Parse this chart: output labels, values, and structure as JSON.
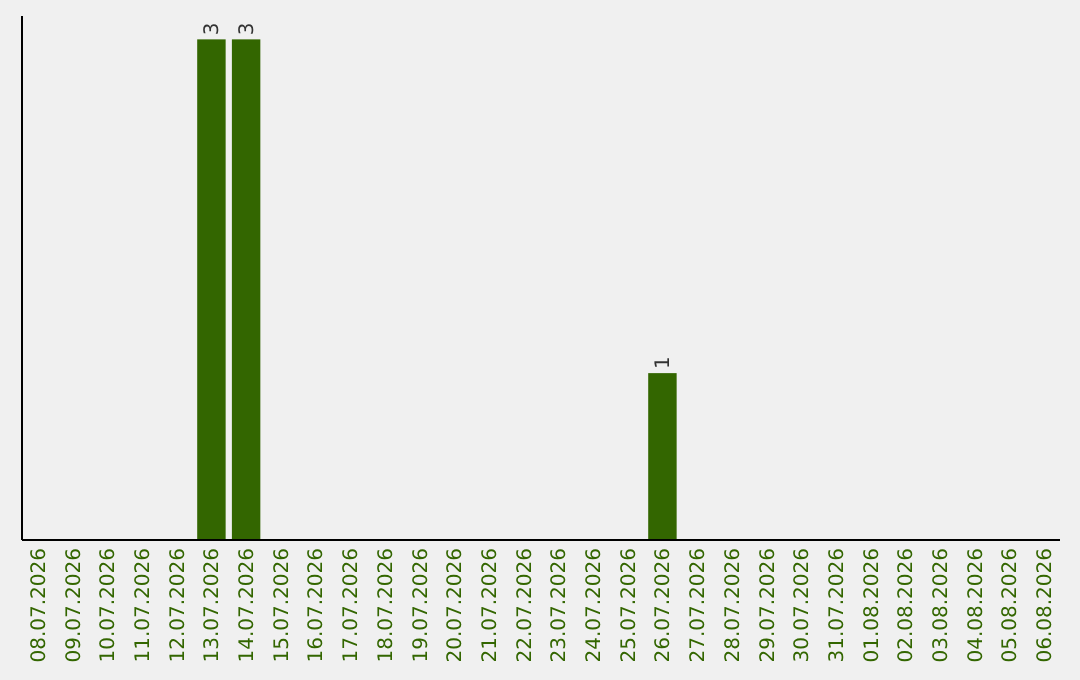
{
  "chart_data": {
    "type": "bar",
    "categories": [
      "08.07.2026",
      "09.07.2026",
      "10.07.2026",
      "11.07.2026",
      "12.07.2026",
      "13.07.2026",
      "14.07.2026",
      "15.07.2026",
      "16.07.2026",
      "17.07.2026",
      "18.07.2026",
      "19.07.2026",
      "20.07.2026",
      "21.07.2026",
      "22.07.2026",
      "23.07.2026",
      "24.07.2026",
      "25.07.2026",
      "26.07.2026",
      "27.07.2026",
      "28.07.2026",
      "29.07.2026",
      "30.07.2026",
      "31.07.2026",
      "01.08.2026",
      "02.08.2026",
      "03.08.2026",
      "04.08.2026",
      "05.08.2026",
      "06.08.2026"
    ],
    "values": [
      0,
      0,
      0,
      0,
      0,
      3,
      3,
      0,
      0,
      0,
      0,
      0,
      0,
      0,
      0,
      0,
      0,
      0,
      1,
      0,
      0,
      0,
      0,
      0,
      0,
      0,
      0,
      0,
      0,
      0
    ],
    "value_labels": [
      null,
      null,
      null,
      null,
      null,
      "3",
      "3",
      null,
      null,
      null,
      null,
      null,
      null,
      null,
      null,
      null,
      null,
      null,
      "1",
      null,
      null,
      null,
      null,
      null,
      null,
      null,
      null,
      null,
      null,
      null
    ],
    "color": "#336600",
    "ylim": [
      0,
      3.14
    ],
    "tick_labels": "x"
  }
}
